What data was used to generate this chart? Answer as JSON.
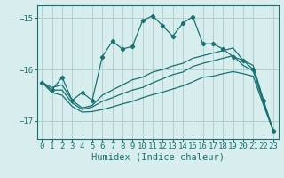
{
  "title": "",
  "xlabel": "Humidex (Indice chaleur)",
  "bg_color": "#d8eeee",
  "grid_color": "#b0d0d0",
  "line_color": "#1a7070",
  "xlim": [
    -0.5,
    23.5
  ],
  "ylim": [
    -17.35,
    -14.75
  ],
  "yticks": [
    -17,
    -16,
    -15
  ],
  "xticks": [
    0,
    1,
    2,
    3,
    4,
    5,
    6,
    7,
    8,
    9,
    10,
    11,
    12,
    13,
    14,
    15,
    16,
    17,
    18,
    19,
    20,
    21,
    22,
    23
  ],
  "s1_x": [
    0,
    1,
    2,
    3,
    4,
    5,
    6,
    7,
    8,
    9,
    10,
    11,
    12,
    13,
    14,
    15,
    16,
    17,
    18,
    19,
    20,
    21,
    22,
    23
  ],
  "s1_y": [
    -16.25,
    -16.4,
    -16.15,
    -16.6,
    -16.45,
    -16.6,
    -15.75,
    -15.45,
    -15.6,
    -15.55,
    -15.05,
    -14.95,
    -15.15,
    -15.35,
    -15.1,
    -14.97,
    -15.5,
    -15.5,
    -15.6,
    -15.75,
    -15.82,
    -16.0,
    -16.6,
    -17.2
  ],
  "s2_x": [
    0,
    1,
    2,
    3,
    4,
    5,
    6,
    7,
    8,
    9,
    10,
    11,
    12,
    13,
    14,
    15,
    16,
    17,
    18,
    19,
    20,
    21,
    22,
    23
  ],
  "s2_y": [
    -16.25,
    -16.35,
    -16.3,
    -16.6,
    -16.75,
    -16.7,
    -16.5,
    -16.4,
    -16.3,
    -16.2,
    -16.15,
    -16.05,
    -16.0,
    -15.93,
    -15.88,
    -15.78,
    -15.73,
    -15.68,
    -15.63,
    -15.58,
    -15.82,
    -15.92,
    -16.58,
    -17.2
  ],
  "s3_x": [
    0,
    1,
    2,
    3,
    4,
    5,
    6,
    7,
    8,
    9,
    10,
    11,
    12,
    13,
    14,
    15,
    16,
    17,
    18,
    19,
    20,
    21,
    22,
    23
  ],
  "s3_y": [
    -16.25,
    -16.4,
    -16.4,
    -16.65,
    -16.78,
    -16.73,
    -16.62,
    -16.55,
    -16.47,
    -16.4,
    -16.35,
    -16.26,
    -16.18,
    -16.1,
    -16.05,
    -15.94,
    -15.88,
    -15.83,
    -15.78,
    -15.73,
    -15.92,
    -16.02,
    -16.63,
    -17.2
  ],
  "s4_x": [
    0,
    1,
    2,
    3,
    4,
    5,
    6,
    7,
    8,
    9,
    10,
    11,
    12,
    13,
    14,
    15,
    16,
    17,
    18,
    19,
    20,
    21,
    22,
    23
  ],
  "s4_y": [
    -16.25,
    -16.45,
    -16.5,
    -16.72,
    -16.83,
    -16.82,
    -16.78,
    -16.73,
    -16.67,
    -16.62,
    -16.55,
    -16.49,
    -16.44,
    -16.38,
    -16.32,
    -16.24,
    -16.15,
    -16.13,
    -16.08,
    -16.04,
    -16.08,
    -16.13,
    -16.68,
    -17.2
  ]
}
